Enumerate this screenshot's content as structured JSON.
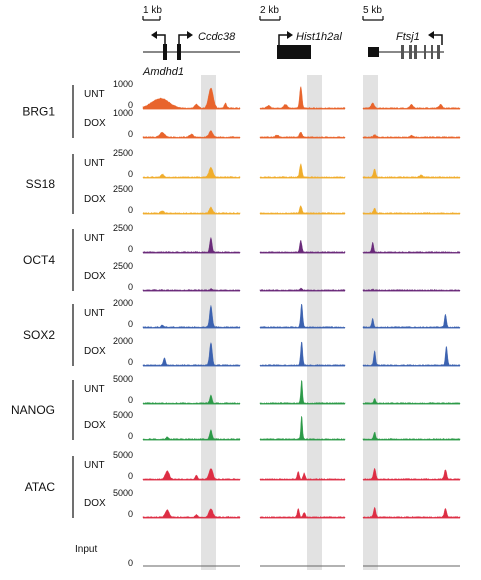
{
  "figure": {
    "scale_bars": [
      "1 kb",
      "2 kb",
      "5 kb"
    ],
    "genes": {
      "locus1": [
        "Ccdc38",
        "Amdhd1"
      ],
      "locus2": [
        "Hist1h2al"
      ],
      "locus3": [
        "Ftsj1"
      ]
    },
    "input_label": "Input",
    "input_tick": "0"
  },
  "chart_data": {
    "type": "area",
    "title": "",
    "panels": [
      "locus1",
      "locus2",
      "locus3"
    ],
    "groups": [
      {
        "factor": "BRG1",
        "color": "#e8642c",
        "tracks": [
          {
            "condition": "UNT",
            "ymax": "1000",
            "ymin": "0",
            "peaks": [
              [
                [
                  0.18,
                  0.22,
                  0.4
                ],
                [
                  0.55,
                  0.05,
                  0.15
                ],
                [
                  0.7,
                  0.06,
                  0.85
                ],
                [
                  0.85,
                  0.03,
                  0.2
                ]
              ],
              [
                [
                  0.48,
                  0.035,
                  0.9
                ],
                [
                  0.3,
                  0.05,
                  0.15
                ],
                [
                  0.1,
                  0.05,
                  0.1
                ]
              ],
              [
                [
                  0.1,
                  0.04,
                  0.2
                ],
                [
                  0.5,
                  0.04,
                  0.15
                ],
                [
                  0.8,
                  0.04,
                  0.15
                ]
              ]
            ]
          },
          {
            "condition": "DOX",
            "ymax": "1000",
            "ymin": "0",
            "peaks": [
              [
                [
                  0.2,
                  0.06,
                  0.2
                ],
                [
                  0.5,
                  0.05,
                  0.12
                ],
                [
                  0.7,
                  0.05,
                  0.25
                ]
              ],
              [
                [
                  0.48,
                  0.04,
                  0.2
                ],
                [
                  0.2,
                  0.05,
                  0.08
                ]
              ],
              [
                [
                  0.12,
                  0.04,
                  0.1
                ],
                [
                  0.5,
                  0.04,
                  0.08
                ]
              ]
            ]
          }
        ]
      },
      {
        "factor": "SS18",
        "color": "#f0ad2c",
        "tracks": [
          {
            "condition": "UNT",
            "ymax": "2500",
            "ymin": "0",
            "peaks": [
              [
                [
                  0.2,
                  0.04,
                  0.12
                ],
                [
                  0.7,
                  0.05,
                  0.4
                ]
              ],
              [
                [
                  0.48,
                  0.035,
                  0.55
                ]
              ],
              [
                [
                  0.12,
                  0.03,
                  0.35
                ],
                [
                  0.6,
                  0.04,
                  0.08
                ]
              ]
            ]
          },
          {
            "condition": "DOX",
            "ymax": "2500",
            "ymin": "0",
            "peaks": [
              [
                [
                  0.2,
                  0.04,
                  0.1
                ],
                [
                  0.7,
                  0.04,
                  0.25
                ]
              ],
              [
                [
                  0.48,
                  0.035,
                  0.3
                ]
              ],
              [
                [
                  0.12,
                  0.03,
                  0.2
                ]
              ]
            ]
          }
        ]
      },
      {
        "factor": "OCT4",
        "color": "#6a2a7a",
        "tracks": [
          {
            "condition": "UNT",
            "ymax": "2500",
            "ymin": "0",
            "peaks": [
              [
                [
                  0.7,
                  0.03,
                  0.6
                ]
              ],
              [
                [
                  0.48,
                  0.03,
                  0.5
                ]
              ],
              [
                [
                  0.1,
                  0.025,
                  0.4
                ]
              ]
            ]
          },
          {
            "condition": "DOX",
            "ymax": "2500",
            "ymin": "0",
            "peaks": [
              [
                [
                  0.7,
                  0.03,
                  0.05
                ]
              ],
              [
                [
                  0.48,
                  0.03,
                  0.08
                ]
              ],
              [
                [
                  0.1,
                  0.025,
                  0.03
                ]
              ]
            ]
          }
        ]
      },
      {
        "factor": "SOX2",
        "color": "#3c62b0",
        "tracks": [
          {
            "condition": "UNT",
            "ymax": "2000",
            "ymin": "0",
            "peaks": [
              [
                [
                  0.2,
                  0.03,
                  0.08
                ],
                [
                  0.7,
                  0.035,
                  0.9
                ]
              ],
              [
                [
                  0.49,
                  0.03,
                  0.98
                ]
              ],
              [
                [
                  0.1,
                  0.025,
                  0.35
                ],
                [
                  0.85,
                  0.025,
                  0.55
                ]
              ]
            ]
          },
          {
            "condition": "DOX",
            "ymax": "2000",
            "ymin": "0",
            "peaks": [
              [
                [
                  0.22,
                  0.03,
                  0.3
                ],
                [
                  0.7,
                  0.035,
                  0.95
                ]
              ],
              [
                [
                  0.49,
                  0.03,
                  0.98
                ]
              ],
              [
                [
                  0.12,
                  0.025,
                  0.6
                ],
                [
                  0.86,
                  0.025,
                  0.8
                ]
              ]
            ]
          }
        ]
      },
      {
        "factor": "NANOG",
        "color": "#2c9a48",
        "tracks": [
          {
            "condition": "UNT",
            "ymax": "5000",
            "ymin": "0",
            "peaks": [
              [
                [
                  0.7,
                  0.03,
                  0.35
                ]
              ],
              [
                [
                  0.49,
                  0.025,
                  0.98
                ]
              ],
              [
                [
                  0.12,
                  0.025,
                  0.2
                ]
              ]
            ]
          },
          {
            "condition": "DOX",
            "ymax": "5000",
            "ymin": "0",
            "peaks": [
              [
                [
                  0.25,
                  0.03,
                  0.08
                ],
                [
                  0.7,
                  0.03,
                  0.4
                ]
              ],
              [
                [
                  0.49,
                  0.025,
                  0.98
                ]
              ],
              [
                [
                  0.12,
                  0.025,
                  0.3
                ]
              ]
            ]
          }
        ]
      },
      {
        "factor": "ATAC",
        "color": "#dd2e44",
        "tracks": [
          {
            "condition": "UNT",
            "ymax": "5000",
            "ymin": "0",
            "peaks": [
              [
                [
                  0.25,
                  0.05,
                  0.35
                ],
                [
                  0.7,
                  0.05,
                  0.45
                ],
                [
                  0.55,
                  0.03,
                  0.15
                ]
              ],
              [
                [
                  0.45,
                  0.03,
                  0.3
                ],
                [
                  0.52,
                  0.03,
                  0.25
                ]
              ],
              [
                [
                  0.12,
                  0.03,
                  0.45
                ],
                [
                  0.85,
                  0.03,
                  0.4
                ]
              ]
            ]
          },
          {
            "condition": "DOX",
            "ymax": "5000",
            "ymin": "0",
            "peaks": [
              [
                [
                  0.25,
                  0.05,
                  0.3
                ],
                [
                  0.7,
                  0.05,
                  0.35
                ],
                [
                  0.55,
                  0.03,
                  0.1
                ]
              ],
              [
                [
                  0.45,
                  0.03,
                  0.35
                ],
                [
                  0.52,
                  0.03,
                  0.2
                ]
              ],
              [
                [
                  0.12,
                  0.03,
                  0.4
                ],
                [
                  0.85,
                  0.03,
                  0.35
                ]
              ]
            ]
          }
        ]
      }
    ]
  },
  "colors": {
    "highlight": "#e2e2e2",
    "ink": "#111111"
  }
}
